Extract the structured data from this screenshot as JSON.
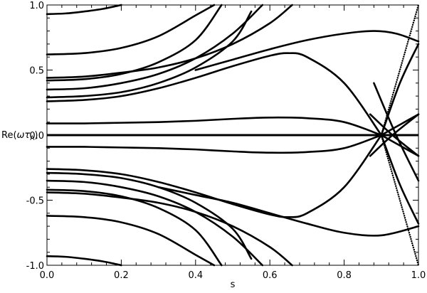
{
  "chart_data": {
    "type": "line",
    "title": "",
    "xlabel": "s",
    "ylabel": "Re(ωτ_A)",
    "ylabel_parts": {
      "prefix": "Re(",
      "omega": "ω",
      "tau": "τ",
      "sub": "A",
      "suffix": ")"
    },
    "xlim": [
      0.0,
      1.0
    ],
    "ylim": [
      -1.0,
      1.0
    ],
    "x_ticks": [
      "0.0",
      "0.2",
      "0.4",
      "0.6",
      "0.8",
      "1.0"
    ],
    "y_ticks": [
      "-1.0",
      "-0.5",
      "0.0",
      "0.5",
      "1.0"
    ],
    "grid": false,
    "legend": "none",
    "colors": {
      "curve": "#000000",
      "axes": "#000000",
      "background": "#ffffff"
    },
    "series": [
      {
        "x": [
          0,
          0.15,
          0.3
        ],
        "y": [
          0.0,
          0.0,
          0.0
        ],
        "special": "zero_line"
      },
      {
        "x": [
          0,
          0.1,
          0.2,
          0.3,
          0.4,
          0.5,
          0.6,
          0.7,
          0.8,
          0.9
        ],
        "y": [
          0.09,
          0.09,
          0.095,
          0.1,
          0.11,
          0.125,
          0.135,
          0.13,
          0.1,
          0.0
        ]
      },
      {
        "x": [
          0,
          0.1,
          0.2,
          0.3,
          0.4,
          0.5,
          0.6,
          0.7,
          0.8,
          0.9
        ],
        "y": [
          -0.09,
          -0.09,
          -0.095,
          -0.1,
          -0.11,
          -0.125,
          -0.135,
          -0.13,
          -0.1,
          0.0
        ]
      },
      {
        "x": [
          0,
          0.1,
          0.2,
          0.3,
          0.4,
          0.5,
          0.6,
          0.65,
          0.7,
          0.8,
          0.9
        ],
        "y": [
          0.26,
          0.27,
          0.3,
          0.36,
          0.44,
          0.53,
          0.61,
          0.63,
          0.6,
          0.4,
          0.0
        ]
      },
      {
        "x": [
          0,
          0.1,
          0.2,
          0.3,
          0.4,
          0.5,
          0.6,
          0.65,
          0.7,
          0.8,
          0.9
        ],
        "y": [
          -0.26,
          -0.27,
          -0.3,
          -0.36,
          -0.44,
          -0.53,
          -0.61,
          -0.63,
          -0.6,
          -0.4,
          0.0
        ]
      },
      {
        "x": [
          0.3,
          0.4,
          0.5,
          0.6,
          0.7,
          0.8,
          0.9,
          1.0
        ],
        "y": [
          -0.4,
          -0.46,
          -0.52,
          -0.6,
          -0.68,
          -0.75,
          -0.77,
          -0.7
        ]
      },
      {
        "x": [
          0.4,
          0.5,
          0.6,
          0.7,
          0.8,
          0.88,
          0.94,
          1.0
        ],
        "y": [
          0.5,
          0.58,
          0.66,
          0.73,
          0.78,
          0.8,
          0.78,
          0.72
        ]
      },
      {
        "x": [
          0.9,
          0.95,
          1.0
        ],
        "y": [
          0.0,
          -0.08,
          -0.16
        ]
      },
      {
        "x": [
          0.9,
          0.95,
          1.0
        ],
        "y": [
          0.0,
          0.08,
          0.16
        ]
      },
      {
        "x": [
          0.9,
          0.95,
          1.0
        ],
        "y": [
          0.0,
          0.4,
          0.7
        ]
      },
      {
        "x": [
          0.9,
          0.95,
          1.0
        ],
        "y": [
          0.0,
          -0.38,
          -0.68
        ]
      },
      {
        "x": [
          0.87,
          0.93,
          1.0
        ],
        "y": [
          0.16,
          0.0,
          -0.16
        ]
      },
      {
        "x": [
          0.87,
          0.93,
          1.0
        ],
        "y": [
          -0.16,
          0.0,
          0.16
        ]
      },
      {
        "x": [
          0.88,
          0.94,
          1.0
        ],
        "y": [
          0.4,
          0.0,
          -0.35
        ]
      },
      {
        "x": [
          0.9,
          0.95,
          0.98,
          1.0
        ],
        "y": [
          0.0,
          -0.5,
          -0.8,
          -1.0
        ],
        "dotted": true
      },
      {
        "x": [
          0.9,
          0.95,
          0.98,
          1.0
        ],
        "y": [
          0.0,
          0.5,
          0.8,
          1.0
        ],
        "dotted": true
      },
      {
        "x": [
          0,
          0.1,
          0.2,
          0.3,
          0.4,
          0.5,
          0.55
        ],
        "y": [
          0.29,
          0.3,
          0.33,
          0.4,
          0.52,
          0.72,
          0.95
        ]
      },
      {
        "x": [
          0,
          0.1,
          0.2,
          0.3,
          0.4,
          0.5,
          0.55
        ],
        "y": [
          -0.29,
          -0.3,
          -0.33,
          -0.4,
          -0.52,
          -0.72,
          -0.95
        ]
      },
      {
        "x": [
          0,
          0.1,
          0.2,
          0.3,
          0.4,
          0.5,
          0.58
        ],
        "y": [
          0.35,
          0.36,
          0.4,
          0.47,
          0.59,
          0.78,
          1.0
        ]
      },
      {
        "x": [
          0,
          0.1,
          0.2,
          0.3,
          0.4,
          0.5,
          0.58
        ],
        "y": [
          -0.35,
          -0.36,
          -0.4,
          -0.47,
          -0.59,
          -0.78,
          -1.0
        ]
      },
      {
        "x": [
          0,
          0.1,
          0.2,
          0.3,
          0.4,
          0.47
        ],
        "y": [
          0.42,
          0.43,
          0.47,
          0.56,
          0.73,
          1.0
        ]
      },
      {
        "x": [
          0,
          0.1,
          0.2,
          0.3,
          0.4,
          0.47
        ],
        "y": [
          -0.42,
          -0.43,
          -0.47,
          -0.56,
          -0.73,
          -1.0
        ]
      },
      {
        "x": [
          0,
          0.1,
          0.2,
          0.3,
          0.4,
          0.5,
          0.6,
          0.66
        ],
        "y": [
          0.44,
          0.45,
          0.48,
          0.52,
          0.59,
          0.7,
          0.86,
          1.0
        ]
      },
      {
        "x": [
          0,
          0.1,
          0.2,
          0.3,
          0.4,
          0.5,
          0.6,
          0.66
        ],
        "y": [
          -0.44,
          -0.45,
          -0.48,
          -0.52,
          -0.59,
          -0.7,
          -0.86,
          -1.0
        ]
      },
      {
        "x": [
          0,
          0.1,
          0.2,
          0.3,
          0.4,
          0.45
        ],
        "y": [
          0.62,
          0.63,
          0.67,
          0.76,
          0.92,
          1.0
        ]
      },
      {
        "x": [
          0,
          0.1,
          0.2,
          0.3,
          0.4,
          0.45
        ],
        "y": [
          -0.62,
          -0.63,
          -0.67,
          -0.76,
          -0.92,
          -1.0
        ]
      },
      {
        "x": [
          0,
          0.05,
          0.1,
          0.15,
          0.2
        ],
        "y": [
          0.93,
          0.935,
          0.95,
          0.97,
          1.0
        ]
      },
      {
        "x": [
          0,
          0.05,
          0.1,
          0.15,
          0.2
        ],
        "y": [
          -0.93,
          -0.935,
          -0.95,
          -0.97,
          -1.0
        ]
      }
    ]
  }
}
